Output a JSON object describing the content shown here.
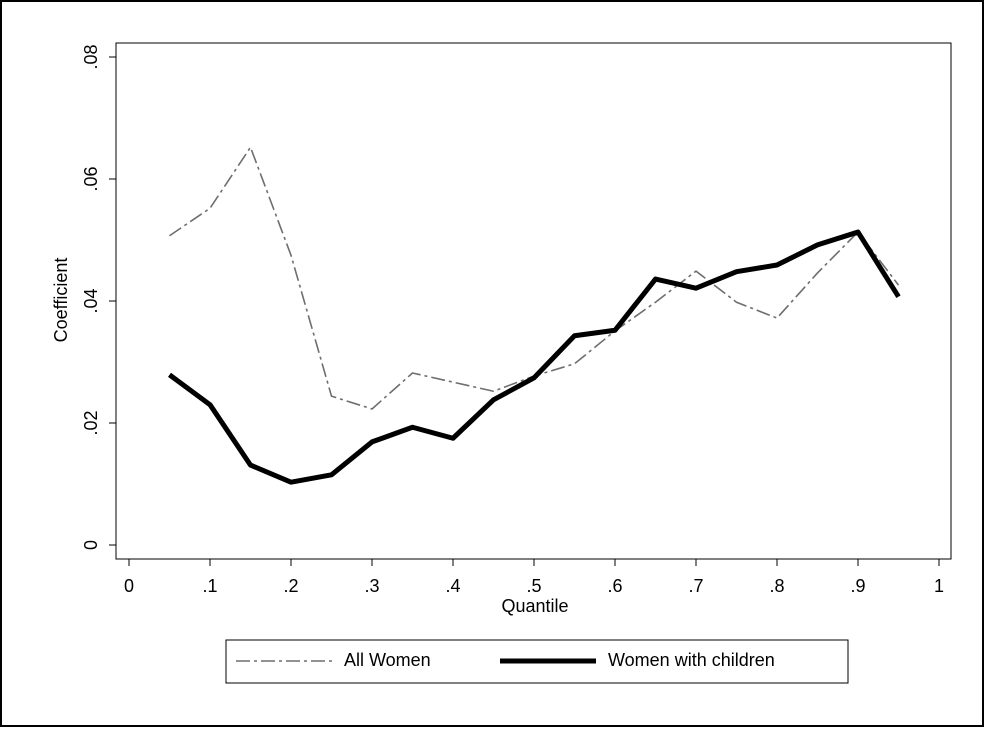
{
  "chart_data": {
    "type": "line",
    "x_label": "Quantile",
    "y_label": "Coefficient",
    "x": [
      0.05,
      0.1,
      0.15,
      0.2,
      0.25,
      0.3,
      0.35,
      0.4,
      0.45,
      0.5,
      0.55,
      0.6,
      0.65,
      0.7,
      0.75,
      0.8,
      0.85,
      0.9,
      0.95
    ],
    "series": [
      {
        "name": "All Women",
        "color": "#6e6e6e",
        "line_style": "dash-dot",
        "weight": "thin",
        "values": [
          0.0507,
          0.0552,
          0.0652,
          0.0475,
          0.0244,
          0.0223,
          0.0282,
          0.0267,
          0.0252,
          0.0277,
          0.0297,
          0.0351,
          0.0398,
          0.0449,
          0.0398,
          0.0372,
          0.0446,
          0.0513,
          0.0426
        ]
      },
      {
        "name": "Women with children",
        "color": "#000000",
        "line_style": "solid",
        "weight": "thick",
        "values": [
          0.0279,
          0.023,
          0.0131,
          0.0103,
          0.0115,
          0.0169,
          0.0193,
          0.0175,
          0.0238,
          0.0274,
          0.0343,
          0.0352,
          0.0436,
          0.0421,
          0.0448,
          0.0459,
          0.0492,
          0.0513,
          0.0407
        ]
      }
    ],
    "xlim": [
      0,
      1
    ],
    "xticks": [
      0,
      {
        "value": 0.1,
        "label": ".1"
      },
      {
        "value": 0.2,
        "label": ".2"
      },
      {
        "value": 0.3,
        "label": ".3"
      },
      {
        "value": 0.4,
        "label": ".4"
      },
      {
        "value": 0.5,
        "label": ".5"
      },
      {
        "value": 0.6,
        "label": ".6"
      },
      {
        "value": 0.7,
        "label": ".7"
      },
      {
        "value": 0.8,
        "label": ".8"
      },
      {
        "value": 0.9,
        "label": ".9"
      },
      1
    ],
    "ylim": [
      0,
      0.08
    ],
    "yticks": [
      0,
      {
        "value": 0.02,
        "label": ".02"
      },
      {
        "value": 0.04,
        "label": ".04"
      },
      {
        "value": 0.06,
        "label": ".06"
      },
      {
        "value": 0.08,
        "label": ".08"
      }
    ],
    "grid": false,
    "legend": "bottom"
  }
}
